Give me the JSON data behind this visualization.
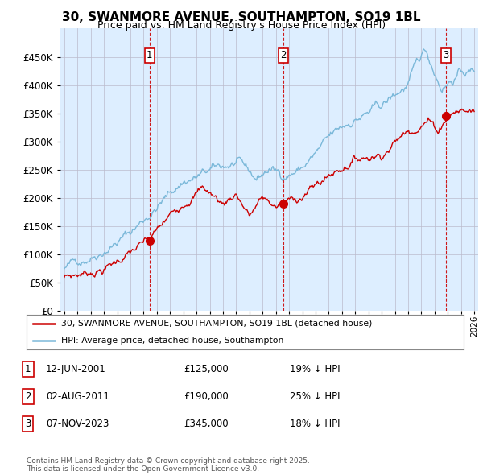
{
  "title": "30, SWANMORE AVENUE, SOUTHAMPTON, SO19 1BL",
  "subtitle": "Price paid vs. HM Land Registry's House Price Index (HPI)",
  "hpi_color": "#7ab8d9",
  "price_color": "#cc0000",
  "dashed_color": "#cc0000",
  "background_color": "#ffffff",
  "chart_bg_color": "#ddeeff",
  "grid_color": "#bbbbcc",
  "ylim": [
    0,
    500000
  ],
  "yticks": [
    0,
    50000,
    100000,
    150000,
    200000,
    250000,
    300000,
    350000,
    400000,
    450000
  ],
  "xlim_start": 1994.7,
  "xlim_end": 2026.3,
  "sale_dates": [
    2001.45,
    2011.58,
    2023.85
  ],
  "sale_prices": [
    125000,
    190000,
    345000
  ],
  "sale_labels": [
    "1",
    "2",
    "3"
  ],
  "table_rows": [
    {
      "num": "1",
      "date": "12-JUN-2001",
      "price": "£125,000",
      "hpi": "19% ↓ HPI"
    },
    {
      "num": "2",
      "date": "02-AUG-2011",
      "price": "£190,000",
      "hpi": "25% ↓ HPI"
    },
    {
      "num": "3",
      "date": "07-NOV-2023",
      "price": "£345,000",
      "hpi": "18% ↓ HPI"
    }
  ],
  "legend_line1": "30, SWANMORE AVENUE, SOUTHAMPTON, SO19 1BL (detached house)",
  "legend_line2": "HPI: Average price, detached house, Southampton",
  "footer": "Contains HM Land Registry data © Crown copyright and database right 2025.\nThis data is licensed under the Open Government Licence v3.0."
}
